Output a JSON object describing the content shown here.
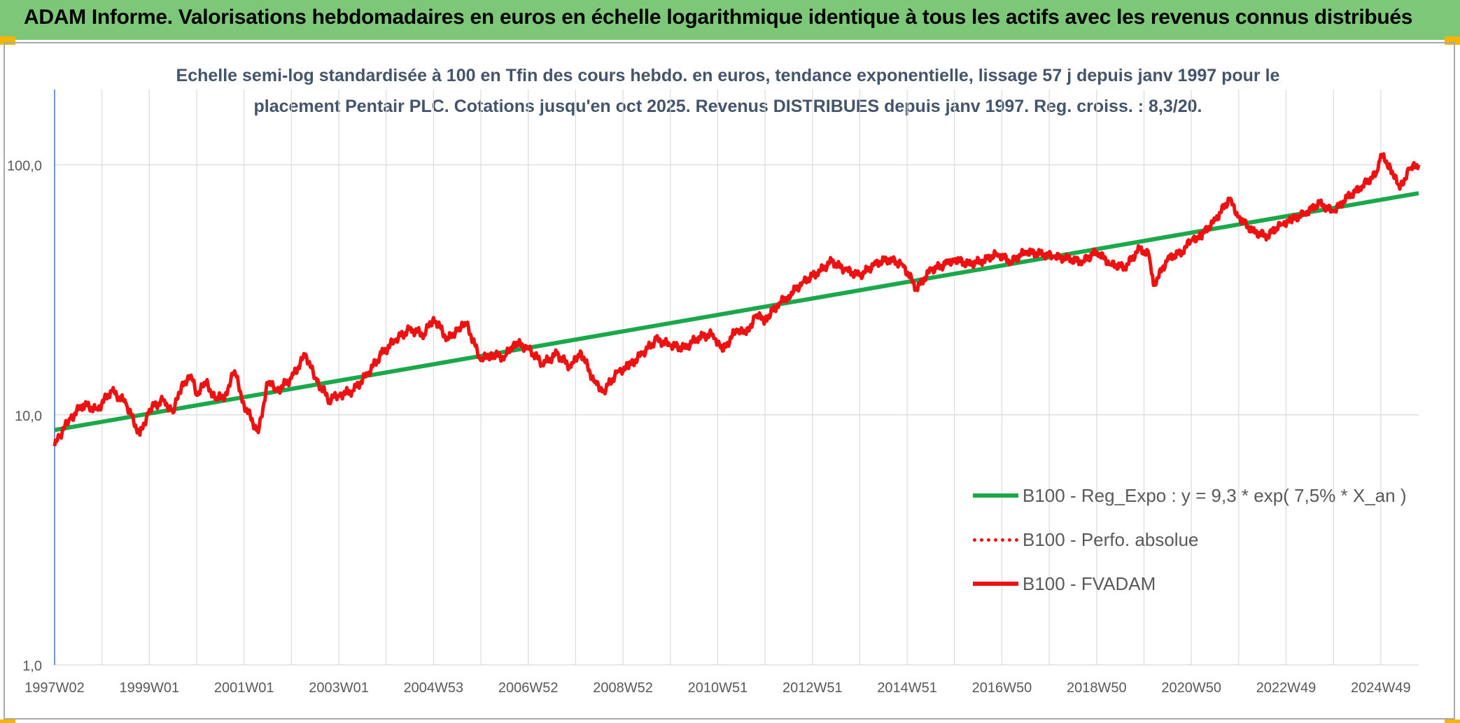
{
  "header": {
    "title": "ADAM Informe. Valorisations hebdomadaires en euros en échelle logarithmique identique à tous les actifs avec les revenus connus distribués"
  },
  "colors": {
    "banner": "#7dc878",
    "trend": "#1aa84a",
    "series": "#ee1111",
    "text": "#44546a"
  },
  "chart_data": {
    "type": "line",
    "subtitle_line1": "Echelle semi-log standardisée à 100 en Tfin des cours hebdo. en euros, tendance exponentielle, lissage 57 j depuis janv 1997 pour le",
    "subtitle_line2": "placement Pentair PLC. Cotations jusqu'en oct 2025. Revenus DISTRIBUES depuis janv 1997. Reg. croiss. : 8,3/20.",
    "y_scale": "log",
    "ylim": [
      1,
      200
    ],
    "y_ticks": [
      {
        "value": 1,
        "label": "1,0"
      },
      {
        "value": 10,
        "label": "10,0"
      },
      {
        "value": 100,
        "label": "100,0"
      }
    ],
    "x_range": [
      1997.0,
      2025.8
    ],
    "x_ticks": [
      {
        "x": 1997.0,
        "label": "1997W02"
      },
      {
        "x": 1999.0,
        "label": "1999W01"
      },
      {
        "x": 2001.0,
        "label": "2001W01"
      },
      {
        "x": 2003.0,
        "label": "2003W01"
      },
      {
        "x": 2005.0,
        "label": "2004W53"
      },
      {
        "x": 2007.0,
        "label": "2006W52"
      },
      {
        "x": 2009.0,
        "label": "2008W52"
      },
      {
        "x": 2011.0,
        "label": "2010W51"
      },
      {
        "x": 2013.0,
        "label": "2012W51"
      },
      {
        "x": 2015.0,
        "label": "2014W51"
      },
      {
        "x": 2017.0,
        "label": "2016W50"
      },
      {
        "x": 2019.0,
        "label": "2018W50"
      },
      {
        "x": 2021.0,
        "label": "2020W50"
      },
      {
        "x": 2023.0,
        "label": "2022W49"
      },
      {
        "x": 2025.0,
        "label": "2024W49"
      }
    ],
    "grid": true,
    "legend_position": "right-bottom",
    "legend": [
      {
        "name": "B100 - Reg_Expo : y = 9,3 * exp( 7,5% *  X_an )",
        "style": "solid",
        "color": "#1aa84a"
      },
      {
        "name": "B100 - Perfo. absolue",
        "style": "dotted",
        "color": "#ee1111"
      },
      {
        "name": "B100 - FVADAM",
        "style": "solid",
        "color": "#ee1111"
      }
    ],
    "series": [
      {
        "name": "B100 - Reg_Expo : y = 9,3 * exp( 7,5% *  X_an )",
        "x": [
          1997.0,
          2025.8
        ],
        "values": [
          8.7,
          77.0
        ]
      },
      {
        "name": "B100 - FVADAM",
        "x": [
          1997.0,
          1997.1,
          1997.3,
          1997.6,
          1997.9,
          1998.2,
          1998.5,
          1998.8,
          1999.0,
          1999.3,
          1999.5,
          1999.7,
          1999.9,
          2000.0,
          2000.2,
          2000.4,
          2000.6,
          2000.8,
          2001.0,
          2001.3,
          2001.5,
          2001.7,
          2002.0,
          2002.3,
          2002.5,
          2002.8,
          2003.0,
          2003.3,
          2003.6,
          2003.9,
          2004.2,
          2004.5,
          2004.8,
          2005.0,
          2005.3,
          2005.5,
          2005.7,
          2006.0,
          2006.2,
          2006.5,
          2006.7,
          2007.0,
          2007.3,
          2007.6,
          2007.9,
          2008.1,
          2008.4,
          2008.6,
          2008.9,
          2009.1,
          2009.4,
          2009.7,
          2010.0,
          2010.3,
          2010.6,
          2010.9,
          2011.1,
          2011.4,
          2011.6,
          2011.8,
          2012.0,
          2012.3,
          2012.5,
          2012.8,
          2013.1,
          2013.4,
          2013.7,
          2014.0,
          2014.3,
          2014.6,
          2014.9,
          2015.2,
          2015.5,
          2015.8,
          2016.0,
          2016.3,
          2016.6,
          2016.9,
          2017.2,
          2017.5,
          2017.8,
          2018.1,
          2018.4,
          2018.7,
          2019.0,
          2019.3,
          2019.6,
          2019.9,
          2020.1,
          2020.2,
          2020.5,
          2020.8,
          2021.0,
          2021.2,
          2021.5,
          2021.8,
          2022.0,
          2022.3,
          2022.6,
          2022.9,
          2023.1,
          2023.4,
          2023.7,
          2024.0,
          2024.3,
          2024.6,
          2024.9,
          2025.0,
          2025.2,
          2025.4,
          2025.6,
          2025.8
        ],
        "values": [
          7.5,
          8.2,
          9.5,
          11.0,
          10.5,
          12.5,
          11.2,
          8.3,
          10.5,
          11.5,
          10.2,
          13.5,
          14.0,
          12.0,
          13.5,
          11.5,
          12.0,
          15.0,
          11.0,
          8.5,
          13.5,
          12.5,
          14.0,
          17.5,
          14.0,
          11.5,
          12.0,
          12.5,
          14.5,
          17.5,
          20.0,
          22.0,
          21.0,
          24.5,
          20.0,
          22.0,
          23.0,
          16.5,
          17.5,
          17.0,
          19.5,
          18.5,
          16.0,
          17.5,
          15.5,
          18.0,
          13.5,
          12.5,
          15.0,
          15.5,
          17.5,
          20.0,
          19.0,
          18.5,
          20.5,
          21.0,
          18.0,
          22.0,
          21.0,
          25.0,
          24.0,
          28.0,
          30.0,
          34.0,
          37.0,
          41.0,
          38.0,
          36.0,
          40.0,
          42.0,
          40.0,
          32.0,
          38.0,
          40.0,
          42.0,
          40.0,
          41.5,
          44.0,
          41.0,
          45.0,
          44.0,
          43.0,
          42.0,
          41.0,
          45.0,
          40.0,
          39.0,
          46.0,
          44.0,
          33.0,
          42.0,
          45.0,
          50.0,
          52.0,
          60.0,
          73.0,
          62.0,
          54.0,
          52.0,
          58.0,
          60.0,
          64.0,
          70.0,
          65.0,
          74.0,
          82.0,
          92.0,
          110.0,
          98.0,
          80.0,
          96.0,
          100.0
        ]
      }
    ]
  }
}
